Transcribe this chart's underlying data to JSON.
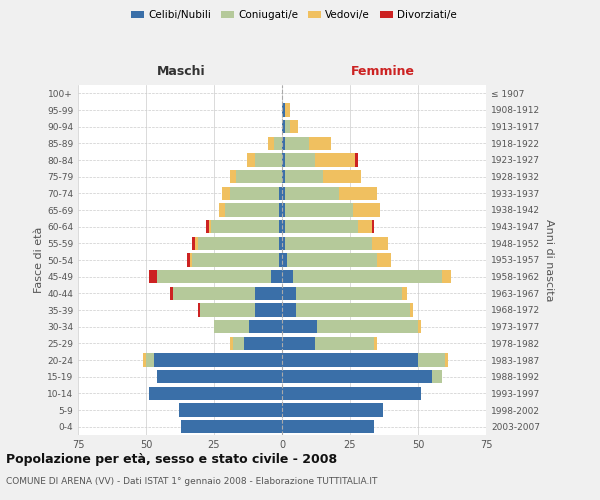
{
  "age_groups": [
    "0-4",
    "5-9",
    "10-14",
    "15-19",
    "20-24",
    "25-29",
    "30-34",
    "35-39",
    "40-44",
    "45-49",
    "50-54",
    "55-59",
    "60-64",
    "65-69",
    "70-74",
    "75-79",
    "80-84",
    "85-89",
    "90-94",
    "95-99",
    "100+"
  ],
  "birth_years": [
    "2003-2007",
    "1998-2002",
    "1993-1997",
    "1988-1992",
    "1983-1987",
    "1978-1982",
    "1973-1977",
    "1968-1972",
    "1963-1967",
    "1958-1962",
    "1953-1957",
    "1948-1952",
    "1943-1947",
    "1938-1942",
    "1933-1937",
    "1928-1932",
    "1923-1927",
    "1918-1922",
    "1913-1917",
    "1908-1912",
    "≤ 1907"
  ],
  "colors": {
    "celibi": "#3a6fa8",
    "coniugati": "#b5c99a",
    "vedovi": "#f0c060",
    "divorziati": "#cc2222"
  },
  "males": {
    "celibi": [
      37,
      38,
      49,
      46,
      47,
      14,
      12,
      10,
      10,
      4,
      1,
      1,
      1,
      1,
      1,
      0,
      0,
      0,
      0,
      0,
      0
    ],
    "coniugati": [
      0,
      0,
      0,
      0,
      3,
      4,
      13,
      20,
      30,
      42,
      32,
      30,
      25,
      20,
      18,
      17,
      10,
      3,
      0,
      0,
      0
    ],
    "vedovi": [
      0,
      0,
      0,
      0,
      1,
      1,
      0,
      0,
      0,
      0,
      1,
      1,
      1,
      2,
      3,
      2,
      3,
      2,
      0,
      0,
      0
    ],
    "divorziati": [
      0,
      0,
      0,
      0,
      0,
      0,
      0,
      1,
      1,
      3,
      1,
      1,
      1,
      0,
      0,
      0,
      0,
      0,
      0,
      0,
      0
    ]
  },
  "females": {
    "celibi": [
      34,
      37,
      51,
      55,
      50,
      12,
      13,
      5,
      5,
      4,
      2,
      1,
      1,
      1,
      1,
      1,
      1,
      1,
      1,
      1,
      0
    ],
    "coniugati": [
      0,
      0,
      0,
      4,
      10,
      22,
      37,
      42,
      39,
      55,
      33,
      32,
      27,
      25,
      20,
      14,
      11,
      9,
      2,
      0,
      0
    ],
    "vedovi": [
      0,
      0,
      0,
      0,
      1,
      1,
      1,
      1,
      2,
      3,
      5,
      6,
      5,
      10,
      14,
      14,
      15,
      8,
      3,
      2,
      0
    ],
    "divorziati": [
      0,
      0,
      0,
      0,
      0,
      0,
      0,
      0,
      0,
      0,
      0,
      0,
      1,
      0,
      0,
      0,
      1,
      0,
      0,
      0,
      0
    ]
  },
  "title": "Popolazione per età, sesso e stato civile - 2008",
  "subtitle": "COMUNE DI ARENA (VV) - Dati ISTAT 1° gennaio 2008 - Elaborazione TUTTITALIA.IT",
  "xlim": 75,
  "background": "#f0f0f0",
  "plot_bg": "#ffffff",
  "grid_color": "#cccccc"
}
